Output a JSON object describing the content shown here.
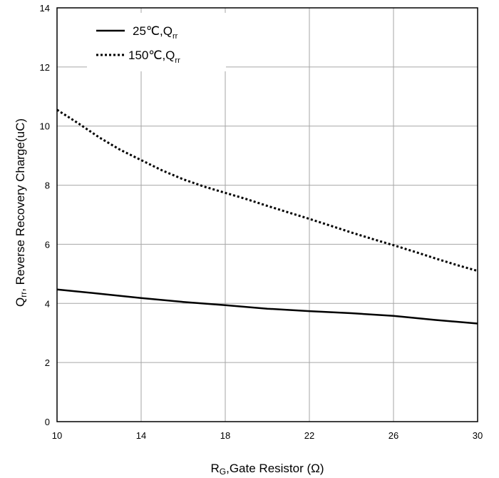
{
  "chart_data": {
    "type": "line",
    "xlabel": {
      "main": "R",
      "sub": "G",
      "rest": ",Gate Resistor (Ω)"
    },
    "ylabel": {
      "main": "Q",
      "sub": "rr",
      "rest": ", Reverse Recovery Charge(uC)"
    },
    "xlim": [
      10,
      30
    ],
    "ylim": [
      0,
      14
    ],
    "xticks": [
      10,
      14,
      18,
      22,
      26,
      30
    ],
    "yticks": [
      0,
      2,
      4,
      6,
      8,
      10,
      12,
      14
    ],
    "grid": true,
    "legend_position": "top-left",
    "series": [
      {
        "name": {
          "main": "25℃,Q",
          "sub": "rr"
        },
        "style": "solid",
        "color": "#000000",
        "x": [
          10,
          12,
          14,
          16,
          18,
          20,
          22,
          24,
          26,
          28,
          30
        ],
        "y": [
          4.47,
          4.33,
          4.18,
          4.05,
          3.94,
          3.82,
          3.74,
          3.67,
          3.58,
          3.44,
          3.32
        ]
      },
      {
        "name": {
          "main": "150℃,Q",
          "sub": "rr"
        },
        "style": "dotted",
        "color": "#000000",
        "x": [
          10,
          11,
          12,
          13,
          14,
          15,
          16,
          17,
          18,
          19,
          20,
          21,
          22,
          23,
          24,
          25,
          26,
          27,
          28,
          29,
          30
        ],
        "y": [
          10.55,
          10.1,
          9.62,
          9.2,
          8.85,
          8.5,
          8.2,
          7.95,
          7.74,
          7.53,
          7.3,
          7.08,
          6.86,
          6.63,
          6.4,
          6.18,
          5.97,
          5.75,
          5.52,
          5.3,
          5.1
        ]
      }
    ]
  }
}
